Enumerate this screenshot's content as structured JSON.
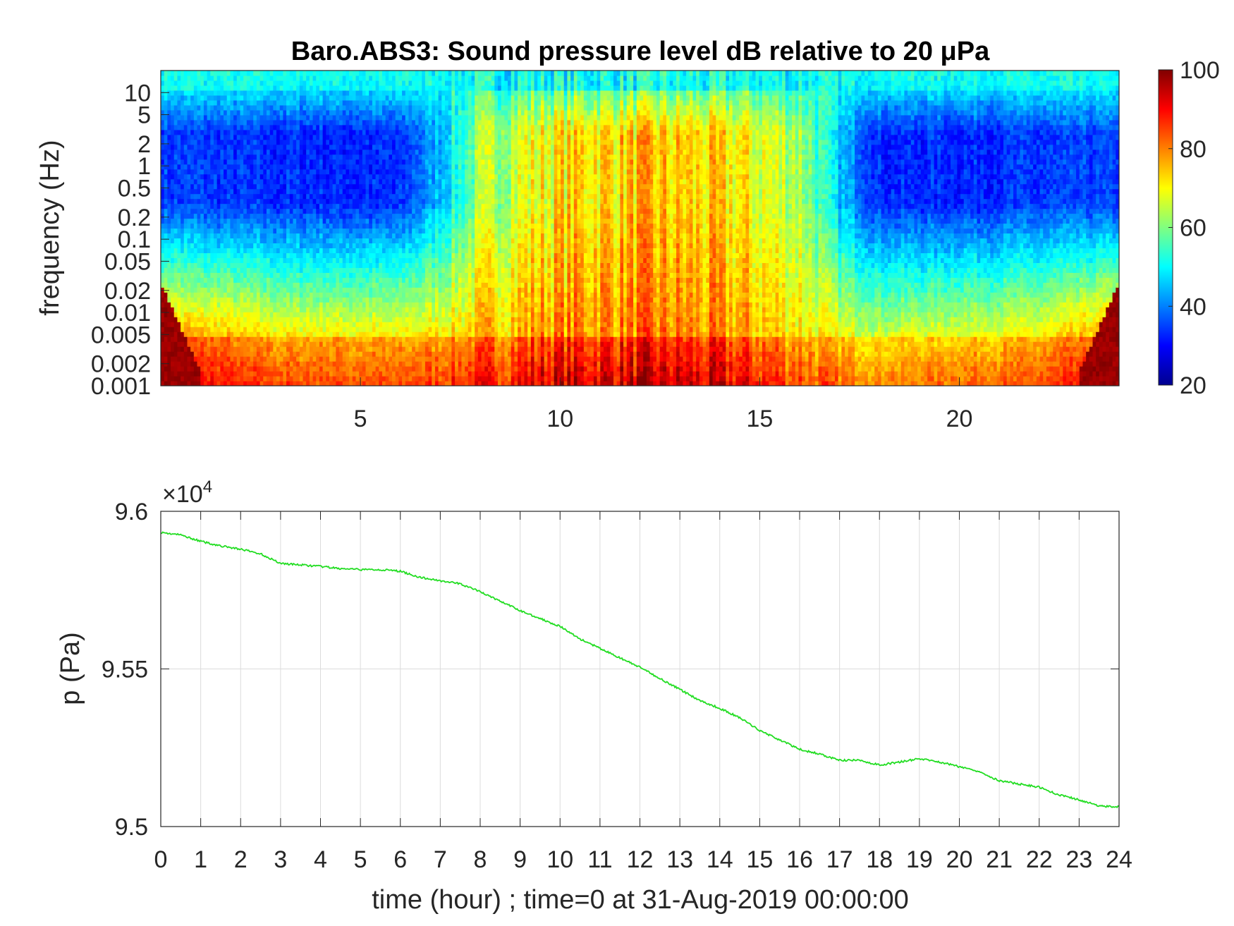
{
  "chart_data": [
    {
      "type": "heatmap",
      "title": "Baro.ABS3: Sound pressure level dB relative to 20 μPa",
      "xlabel": "",
      "ylabel": "frequency (Hz)",
      "x_ticks": [
        "5",
        "10",
        "15",
        "20"
      ],
      "x_tick_values": [
        5,
        10,
        15,
        20
      ],
      "xlim": [
        0,
        24
      ],
      "y_scale": "log",
      "y_ticks": [
        "0.001",
        "0.002",
        "0.005",
        "0.01",
        "0.02",
        "0.05",
        "0.1",
        "0.2",
        "0.5",
        "1",
        "2",
        "5",
        "10"
      ],
      "y_tick_values": [
        0.001,
        0.002,
        0.005,
        0.01,
        0.02,
        0.05,
        0.1,
        0.2,
        0.5,
        1,
        2,
        5,
        10
      ],
      "ylim": [
        0.001,
        20
      ],
      "colormap": "jet",
      "colorbar": {
        "range": [
          20,
          100
        ],
        "ticks": [
          "20",
          "40",
          "60",
          "80",
          "100"
        ],
        "tick_values": [
          20,
          40,
          60,
          80,
          100
        ],
        "colors": [
          "#00008f",
          "#0000ff",
          "#0080ff",
          "#00ffff",
          "#80ff80",
          "#ffff00",
          "#ff8000",
          "#ff0000",
          "#800000"
        ]
      },
      "approx_levels_db": {
        "hours": [
          0,
          3,
          6,
          7,
          8,
          10,
          12,
          14,
          16,
          17,
          18,
          20,
          22,
          24
        ],
        "quiet_band_0p5_to_2Hz": [
          35,
          33,
          33,
          45,
          62,
          72,
          74,
          72,
          64,
          45,
          33,
          33,
          34,
          35
        ],
        "low_band_0p002Hz": [
          92,
          85,
          84,
          86,
          88,
          93,
          94,
          92,
          86,
          82,
          80,
          82,
          84,
          92
        ]
      }
    },
    {
      "type": "line",
      "title": "",
      "xlabel": "time (hour) ; time=0 at 31-Aug-2019 00:00:00",
      "ylabel": "p (Pa)",
      "y_multiplier": "×10",
      "y_multiplier_exp": "4",
      "x_ticks": [
        "0",
        "1",
        "2",
        "3",
        "4",
        "5",
        "6",
        "7",
        "8",
        "9",
        "10",
        "11",
        "12",
        "13",
        "14",
        "15",
        "16",
        "17",
        "18",
        "19",
        "20",
        "21",
        "22",
        "23",
        "24"
      ],
      "y_ticks": [
        "9.5",
        "9.55",
        "9.6"
      ],
      "y_tick_values": [
        9.5,
        9.55,
        9.6
      ],
      "xlim": [
        0,
        24
      ],
      "ylim": [
        9.5,
        9.6
      ],
      "grid": true,
      "line_color": "#22dd22",
      "series": [
        {
          "x": [
            0,
            0.5,
            1,
            1.5,
            2,
            2.5,
            3,
            3.5,
            4,
            4.5,
            5,
            5.5,
            6,
            6.5,
            7,
            7.5,
            8,
            8.5,
            9,
            9.5,
            10,
            10.5,
            11,
            11.5,
            12,
            12.5,
            13,
            13.5,
            14,
            14.5,
            15,
            15.5,
            16,
            16.5,
            17,
            17.5,
            18,
            18.5,
            19,
            19.5,
            20,
            20.5,
            21,
            21.5,
            22,
            22.5,
            23,
            23.5,
            24
          ],
          "y": [
            9.5933,
            9.5925,
            9.5905,
            9.589,
            9.588,
            9.5865,
            9.5835,
            9.583,
            9.5825,
            9.5818,
            9.5815,
            9.5815,
            9.581,
            9.579,
            9.578,
            9.577,
            9.5745,
            9.5715,
            9.5685,
            9.566,
            9.5635,
            9.5595,
            9.5565,
            9.5535,
            9.5505,
            9.547,
            9.5435,
            9.54,
            9.5375,
            9.5345,
            9.5305,
            9.5275,
            9.5245,
            9.523,
            9.521,
            9.521,
            9.5195,
            9.5205,
            9.5215,
            9.5205,
            9.519,
            9.5175,
            9.5145,
            9.5135,
            9.5125,
            9.51,
            9.5085,
            9.5065,
            9.5063
          ]
        }
      ]
    }
  ]
}
